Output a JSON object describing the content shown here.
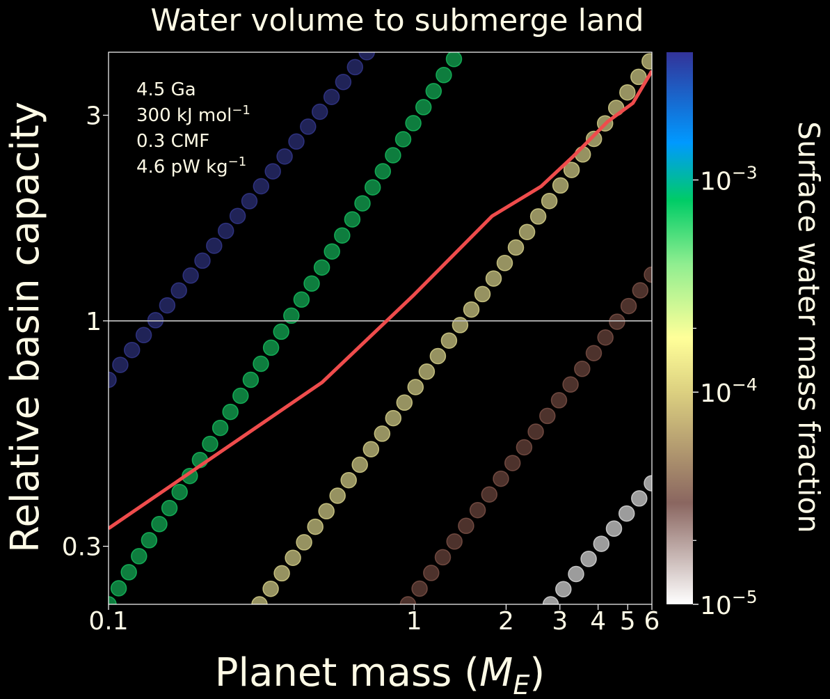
{
  "chart_data": {
    "type": "scatter",
    "title": "Water volume to submerge land",
    "xlabel": "Planet mass (",
    "xlabel_sym": "M",
    "xlabel_sub": "E",
    "xlabel_end": ")",
    "ylabel": "Relative basin capacity",
    "xscale": "log",
    "yscale": "log",
    "xlim": [
      0.1,
      6
    ],
    "ylim": [
      0.22,
      4.2
    ],
    "x_ticks": [
      {
        "value": 0.1,
        "label": "0.1"
      },
      {
        "value": 1,
        "label": "1"
      },
      {
        "value": 2,
        "label": "2"
      },
      {
        "value": 3,
        "label": "3"
      },
      {
        "value": 4,
        "label": "4"
      },
      {
        "value": 5,
        "label": "5"
      },
      {
        "value": 6,
        "label": "6"
      }
    ],
    "y_ticks": [
      {
        "value": 0.3,
        "label": "0.3"
      },
      {
        "value": 1,
        "label": "1"
      },
      {
        "value": 3,
        "label": "3"
      }
    ],
    "reference_line": {
      "y": 1,
      "color": "#bbbbbb"
    },
    "annotations": [
      "4.5 Ga",
      "300 kJ mol⁻¹",
      "0.3 CMF",
      "4.6 pW kg⁻¹"
    ],
    "annotation_parts": [
      {
        "base": "4.5 Ga",
        "sup": ""
      },
      {
        "base": "300 kJ mol",
        "sup": "−1"
      },
      {
        "base": "0.3 CMF",
        "sup": ""
      },
      {
        "base": "4.6 pW kg",
        "sup": "−1"
      }
    ],
    "series": [
      {
        "water_fraction": 0.0035,
        "color": "#3b3f9e",
        "opacity": 0.55,
        "points": [
          [
            0.1,
            0.73
          ],
          [
            0.7,
            4.2
          ]
        ]
      },
      {
        "water_fraction": 0.0008,
        "color": "#17c964",
        "opacity": 0.62,
        "points": [
          [
            0.1,
            0.22
          ],
          [
            1.35,
            4.05
          ]
        ]
      },
      {
        "water_fraction": 0.00012,
        "color": "#d6d08a",
        "opacity": 0.7,
        "points": [
          [
            0.312,
            0.22
          ],
          [
            5.9,
            4.0
          ]
        ]
      },
      {
        "water_fraction": 3e-05,
        "color": "#8c5b50",
        "opacity": 0.55,
        "points": [
          [
            0.955,
            0.22
          ],
          [
            6.0,
            1.28
          ]
        ]
      },
      {
        "water_fraction": 1.35e-05,
        "color": "#d0d0d0",
        "opacity": 0.75,
        "points": [
          [
            2.8,
            0.22
          ],
          [
            6.0,
            0.42
          ]
        ]
      }
    ],
    "threshold_curve": {
      "color": "#ef4c4c",
      "points": [
        [
          0.1,
          0.33
        ],
        [
          0.5,
          0.72
        ],
        [
          1.0,
          1.15
        ],
        [
          1.8,
          1.75
        ],
        [
          2.6,
          2.05
        ],
        [
          3.3,
          2.4
        ],
        [
          4.3,
          2.9
        ],
        [
          5.2,
          3.2
        ],
        [
          6.0,
          3.8
        ]
      ]
    },
    "colorbar": {
      "label": "Surface water mass fraction",
      "scale": "log",
      "range": [
        1e-05,
        0.004
      ],
      "ticks": [
        {
          "value": 1e-05,
          "base": "10",
          "exp": "−5"
        },
        {
          "value": 0.0001,
          "base": "10",
          "exp": "−4"
        },
        {
          "value": 0.001,
          "base": "10",
          "exp": "−3"
        }
      ],
      "minor_ticks": [
        2e-05,
        0.0002
      ],
      "stops": [
        {
          "value": 1e-05,
          "color": "#ffffff"
        },
        {
          "value": 3e-05,
          "color": "#8a6660"
        },
        {
          "value": 0.0001,
          "color": "#dcd080"
        },
        {
          "value": 0.00018,
          "color": "#ffff99"
        },
        {
          "value": 0.0004,
          "color": "#90ee90"
        },
        {
          "value": 0.0008,
          "color": "#00cc66"
        },
        {
          "value": 0.0015,
          "color": "#0099ff"
        },
        {
          "value": 0.004,
          "color": "#333399"
        }
      ]
    }
  }
}
